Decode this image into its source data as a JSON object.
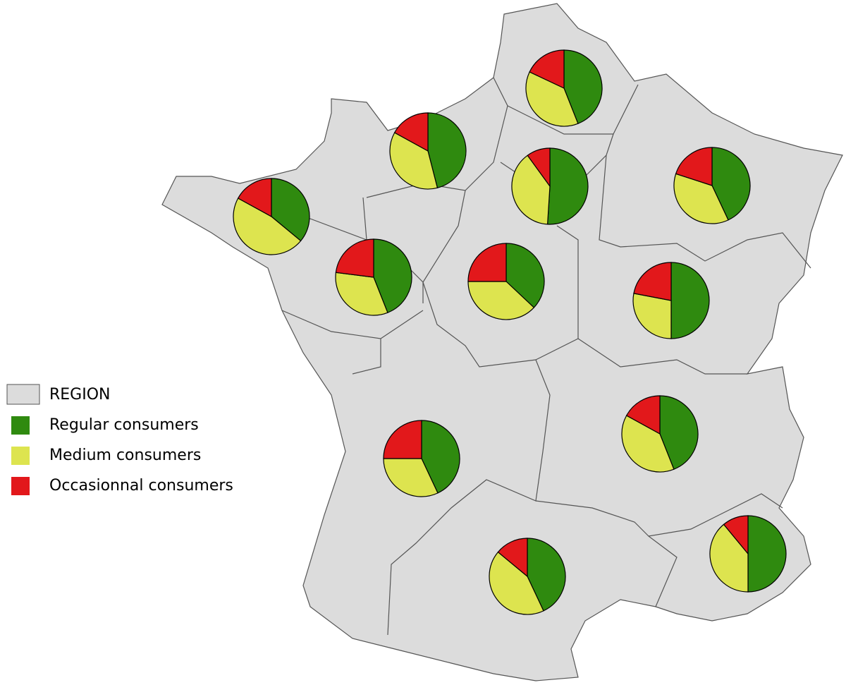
{
  "chart_data": {
    "type": "pie",
    "region_legend": "REGION",
    "region_color": "#dcdcdc",
    "series": [
      {
        "name": "Regular consumers",
        "color": "#2f8a0f",
        "values": [
          44,
          46,
          51,
          43,
          36,
          44,
          37,
          50,
          43,
          44,
          43,
          50
        ]
      },
      {
        "name": "Medium consumers",
        "color": "#dde44f",
        "values": [
          38,
          37,
          39,
          37,
          47,
          33,
          38,
          28,
          32,
          39,
          43,
          39
        ]
      },
      {
        "name": "Occasionnal consumers",
        "color": "#e2181b",
        "values": [
          18,
          17,
          10,
          20,
          17,
          23,
          25,
          22,
          25,
          17,
          14,
          11
        ]
      }
    ]
  }
}
